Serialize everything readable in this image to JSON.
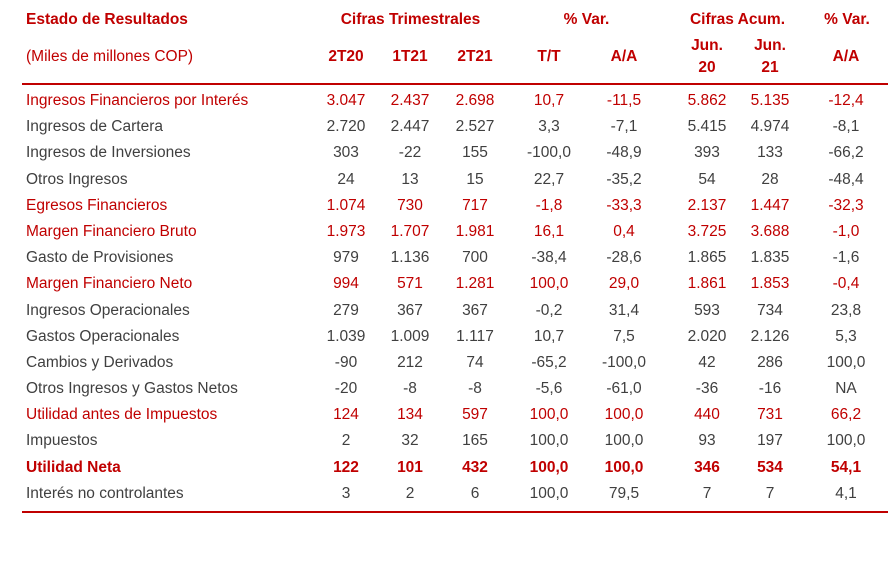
{
  "header": {
    "title": "Estado de Resultados",
    "subtitle": "(Miles de millones COP)",
    "groups": [
      "Cifras Trimestrales",
      "% Var.",
      "Cifras Acum.",
      "% Var."
    ],
    "columns": [
      {
        "l1": "2T20",
        "l2": ""
      },
      {
        "l1": "1T21",
        "l2": ""
      },
      {
        "l1": "2T21",
        "l2": ""
      },
      {
        "l1": "T/T",
        "l2": ""
      },
      {
        "l1": "A/A",
        "l2": ""
      },
      {
        "l1": "Jun.",
        "l2": "20"
      },
      {
        "l1": "Jun.",
        "l2": "21"
      },
      {
        "l1": "A/A",
        "l2": ""
      }
    ]
  },
  "rows": [
    {
      "label": "Ingresos Financieros por Interés",
      "values": [
        "3.047",
        "2.437",
        "2.698",
        "10,7",
        "-11,5",
        "5.862",
        "5.135",
        "-12,4"
      ]
    },
    {
      "label": "Ingresos de Cartera",
      "values": [
        "2.720",
        "2.447",
        "2.527",
        "3,3",
        "-7,1",
        "5.415",
        "4.974",
        "-8,1"
      ]
    },
    {
      "label": "Ingresos de Inversiones",
      "values": [
        "303",
        "-22",
        "155",
        "-100,0",
        "-48,9",
        "393",
        "133",
        "-66,2"
      ]
    },
    {
      "label": "Otros Ingresos",
      "values": [
        "24",
        "13",
        "15",
        "22,7",
        "-35,2",
        "54",
        "28",
        "-48,4"
      ]
    },
    {
      "label": "Egresos Financieros",
      "values": [
        "1.074",
        "730",
        "717",
        "-1,8",
        "-33,3",
        "2.137",
        "1.447",
        "-32,3"
      ]
    },
    {
      "label": "Margen Financiero Bruto",
      "values": [
        "1.973",
        "1.707",
        "1.981",
        "16,1",
        "0,4",
        "3.725",
        "3.688",
        "-1,0"
      ]
    },
    {
      "label": "Gasto de Provisiones",
      "values": [
        "979",
        "1.136",
        "700",
        "-38,4",
        "-28,6",
        "1.865",
        "1.835",
        "-1,6"
      ]
    },
    {
      "label": "Margen Financiero Neto",
      "values": [
        "994",
        "571",
        "1.281",
        "100,0",
        "29,0",
        "1.861",
        "1.853",
        "-0,4"
      ]
    },
    {
      "label": "Ingresos Operacionales",
      "values": [
        "279",
        "367",
        "367",
        "-0,2",
        "31,4",
        "593",
        "734",
        "23,8"
      ]
    },
    {
      "label": "Gastos Operacionales",
      "values": [
        "1.039",
        "1.009",
        "1.117",
        "10,7",
        "7,5",
        "2.020",
        "2.126",
        "5,3"
      ]
    },
    {
      "label": "Cambios y Derivados",
      "values": [
        "-90",
        "212",
        "74",
        "-65,2",
        "-100,0",
        "42",
        "286",
        "100,0"
      ]
    },
    {
      "label": "Otros Ingresos y Gastos Netos",
      "values": [
        "-20",
        "-8",
        "-8",
        "-5,6",
        "-61,0",
        "-36",
        "-16",
        "NA"
      ]
    },
    {
      "label": "Utilidad antes de Impuestos",
      "values": [
        "124",
        "134",
        "597",
        "100,0",
        "100,0",
        "440",
        "731",
        "66,2"
      ]
    },
    {
      "label": "Impuestos",
      "values": [
        "2",
        "32",
        "165",
        "100,0",
        "100,0",
        "93",
        "197",
        "100,0"
      ]
    },
    {
      "label": "Utilidad Neta",
      "values": [
        "122",
        "101",
        "432",
        "100,0",
        "100,0",
        "346",
        "534",
        "54,1"
      ]
    },
    {
      "label": "Interés no controlantes",
      "values": [
        "3",
        "2",
        "6",
        "100,0",
        "79,5",
        "7",
        "7",
        "4,1"
      ]
    }
  ],
  "colors": {
    "accent": "#c00000",
    "text": "#404040"
  }
}
